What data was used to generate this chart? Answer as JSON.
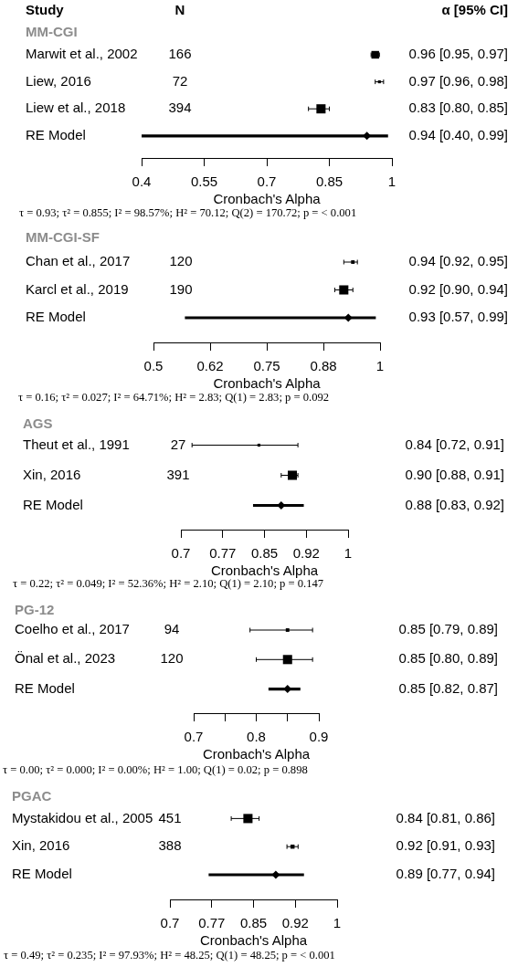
{
  "chart_data": [
    {
      "type": "scatter",
      "title": "MM-CGI",
      "orientation": "horizontal",
      "xlabel": "Cronbach's Alpha",
      "ylabel": "Study",
      "categories": [
        "Marwit et al., 2002",
        "Liew, 2016",
        "Liew et al., 2018",
        "RE Model"
      ],
      "series": [
        {
          "type": "bubble",
          "marker": "square",
          "color": "#000000",
          "values": [
            0.96,
            0.97,
            0.83,
            null
          ],
          "errors": [
            [
              0.95,
              0.97
            ],
            [
              0.96,
              0.98
            ],
            [
              0.8,
              0.85
            ],
            null
          ],
          "sizes": [
            0.7,
            0.1,
            1,
            null
          ],
          "value_labels": [
            "0.96 [0.95, 0.97]",
            "0.97 [0.96, 0.98]",
            "0.83 [0.80, 0.85]",
            null
          ]
        },
        {
          "type": "bar",
          "color": "#000000",
          "base": [
            null,
            null,
            null,
            0.4
          ],
          "values": [
            null,
            null,
            null,
            0.59
          ]
        },
        {
          "type": "scatter",
          "marker": "diamond",
          "color": "#000000",
          "values": [
            null,
            null,
            null,
            0.94
          ]
        }
      ],
      "xlim": [
        0.4,
        1
      ],
      "xticks": [
        0.4,
        0.55,
        0.7,
        0.85,
        1
      ],
      "annotations": [
        "N",
        "α [95% CI]",
        "166",
        "72",
        "394",
        "0.94 [0.40, 0.99]",
        "τ = 0.93; τ² = 0.855; I² = 98.57%; H² = 70.12; Q(2) = 170.72; p = < 0.001"
      ]
    },
    {
      "type": "scatter",
      "title": "MM-CGI-SF",
      "orientation": "horizontal",
      "xlabel": "Cronbach's Alpha",
      "categories": [
        "Chan et al., 2017",
        "Karcl et al., 2019",
        "RE Model"
      ],
      "series": [
        {
          "type": "bubble",
          "marker": "square",
          "color": "#000000",
          "values": [
            0.94,
            0.92,
            null
          ],
          "errors": [
            [
              0.92,
              0.95
            ],
            [
              0.9,
              0.94
            ],
            null
          ],
          "sizes": [
            0.15,
            1,
            null
          ],
          "value_labels": [
            "0.94 [0.92, 0.95]",
            "0.92 [0.90, 0.94]",
            null
          ]
        },
        {
          "type": "bar",
          "color": "#000000",
          "base": [
            null,
            null,
            0.57
          ],
          "values": [
            null,
            null,
            0.42
          ]
        },
        {
          "type": "scatter",
          "marker": "diamond",
          "color": "#000000",
          "values": [
            null,
            null,
            0.93
          ]
        }
      ],
      "xlim": [
        0.5,
        1
      ],
      "xticks": [
        0.5,
        {
          "value": 0.625,
          "label": "0.62"
        },
        0.75,
        {
          "value": 0.875,
          "label": "0.88"
        },
        1
      ],
      "annotations": [
        "120",
        "190",
        "0.93 [0.57, 0.99]",
        "τ = 0.16; τ² = 0.027; I² = 64.71%; H² = 2.83; Q(1) = 2.83; p = 0.092"
      ]
    },
    {
      "type": "scatter",
      "title": "AGS",
      "orientation": "horizontal",
      "xlabel": "Cronbach's Alpha",
      "categories": [
        "Theut et al., 1991",
        "Xin, 2016",
        "RE Model"
      ],
      "series": [
        {
          "type": "bubble",
          "marker": "square",
          "color": "#000000",
          "values": [
            0.84,
            0.9,
            null
          ],
          "errors": [
            [
              0.72,
              0.91
            ],
            [
              0.88,
              0.91
            ],
            null
          ],
          "sizes": [
            0.1,
            1,
            null
          ],
          "value_labels": [
            "0.84 [0.72, 0.91]",
            "0.90 [0.88, 0.91]",
            null
          ]
        },
        {
          "type": "bar",
          "color": "#000000",
          "base": [
            null,
            null,
            0.83
          ],
          "values": [
            null,
            null,
            0.09
          ]
        },
        {
          "type": "scatter",
          "marker": "diamond",
          "color": "#000000",
          "values": [
            null,
            null,
            0.88
          ]
        }
      ],
      "xlim": [
        0.7,
        1
      ],
      "xticks": [
        0.7,
        {
          "value": 0.775,
          "label": "0.77"
        },
        0.85,
        {
          "value": 0.925,
          "label": "0.92"
        },
        1
      ],
      "annotations": [
        "27",
        "391",
        "0.88 [0.83, 0.92]",
        "τ = 0.22; τ² = 0.049; I² = 52.36%; H² = 2.10; Q(1) = 2.10; p = 0.147"
      ]
    },
    {
      "type": "scatter",
      "title": "PG-12",
      "orientation": "horizontal",
      "xlabel": "Cronbach's Alpha",
      "categories": [
        "Coelho et al., 2017",
        "Önal et al., 2023",
        "RE Model"
      ],
      "series": [
        {
          "type": "bubble",
          "marker": "square",
          "color": "#000000",
          "values": [
            0.85,
            0.85,
            null
          ],
          "errors": [
            [
              0.79,
              0.89
            ],
            [
              0.8,
              0.89
            ],
            null
          ],
          "sizes": [
            0.15,
            1,
            null
          ],
          "value_labels": [
            "0.85 [0.79, 0.89]",
            "0.85 [0.80, 0.89]",
            null
          ]
        },
        {
          "type": "bar",
          "color": "#000000",
          "base": [
            null,
            null,
            0.82
          ],
          "values": [
            null,
            null,
            0.05
          ]
        },
        {
          "type": "scatter",
          "marker": "diamond",
          "color": "#000000",
          "values": [
            null,
            null,
            0.85
          ]
        }
      ],
      "xlim": [
        0.7,
        0.9
      ],
      "xticks": [
        0.7,
        {
          "value": 0.75,
          "label": null
        },
        0.8,
        {
          "value": 0.85,
          "label": null
        },
        0.9
      ],
      "annotations": [
        "94",
        "120",
        "0.85 [0.82, 0.87]",
        "τ = 0.00; τ² = 0.000; I² = 0.00%; H² = 1.00; Q(1) = 0.02; p = 0.898"
      ]
    },
    {
      "type": "scatter",
      "title": "PGAC",
      "orientation": "horizontal",
      "xlabel": "Cronbach's Alpha",
      "categories": [
        "Mystakidou et al., 2005",
        "Xin, 2016",
        "RE Model"
      ],
      "series": [
        {
          "type": "bubble",
          "marker": "square",
          "color": "#000000",
          "values": [
            0.84,
            0.92,
            null
          ],
          "errors": [
            [
              0.81,
              0.86
            ],
            [
              0.91,
              0.93
            ],
            null
          ],
          "sizes": [
            1,
            0.2,
            null
          ],
          "value_labels": [
            "0.84 [0.81, 0.86]",
            "0.92 [0.91, 0.93]",
            null
          ]
        },
        {
          "type": "bar",
          "color": "#000000",
          "base": [
            null,
            null,
            0.77
          ],
          "values": [
            null,
            null,
            0.17
          ]
        },
        {
          "type": "scatter",
          "marker": "diamond",
          "color": "#000000",
          "values": [
            null,
            null,
            0.89
          ]
        }
      ],
      "xlim": [
        0.7,
        1
      ],
      "xticks": [
        0.7,
        {
          "value": 0.775,
          "label": "0.77"
        },
        0.85,
        {
          "value": 0.925,
          "label": "0.92"
        },
        1
      ],
      "annotations": [
        "451",
        "388",
        "0.89 [0.77, 0.94]",
        "τ = 0.49; τ² = 0.235; I² = 97.93%; H² = 48.25; Q(1) = 48.25; p = < 0.001"
      ]
    }
  ]
}
